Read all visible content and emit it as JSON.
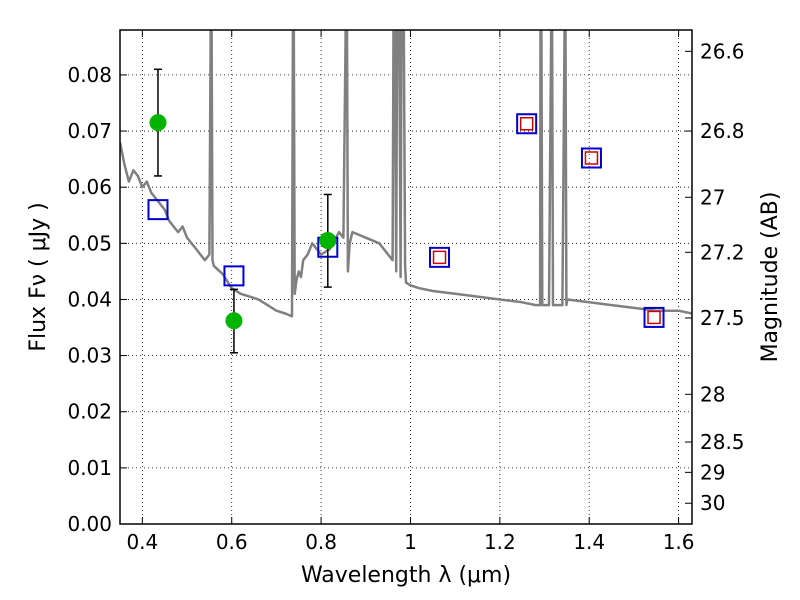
{
  "chart_data": {
    "type": "scatter",
    "title": "",
    "xlabel": "Wavelength  λ (μm)",
    "ylabel": "Flux  Fν  ( μJy )",
    "y2label": "Magnitude (AB)",
    "xlim": [
      0.35,
      1.63
    ],
    "ylim": [
      0.0,
      0.088
    ],
    "grid": true,
    "x_ticks": [
      0.4,
      0.6,
      0.8,
      1.0,
      1.2,
      1.4,
      1.6
    ],
    "x_tick_labels": [
      "0.4",
      "0.6",
      "0.8",
      "1",
      "1.2",
      "1.4",
      "1.6"
    ],
    "y_ticks": [
      0.0,
      0.01,
      0.02,
      0.03,
      0.04,
      0.05,
      0.06,
      0.07,
      0.08
    ],
    "y_tick_labels": [
      "0.00",
      "0.01",
      "0.02",
      "0.03",
      "0.04",
      "0.05",
      "0.06",
      "0.07",
      "0.08"
    ],
    "y2_ticks": [
      {
        "label": "26.6",
        "flux": 0.0842
      },
      {
        "label": "26.8",
        "flux": 0.07
      },
      {
        "label": "27",
        "flux": 0.0582
      },
      {
        "label": "27.2",
        "flux": 0.0484
      },
      {
        "label": "27.5",
        "flux": 0.0367
      },
      {
        "label": "28",
        "flux": 0.0231
      },
      {
        "label": "28.5",
        "flux": 0.0146
      },
      {
        "label": "29",
        "flux": 0.0092
      },
      {
        "label": "30",
        "flux": 0.0037
      }
    ],
    "series": [
      {
        "type": "line",
        "color": "#808080",
        "x": [
          0.35,
          0.36,
          0.37,
          0.38,
          0.39,
          0.4,
          0.41,
          0.42,
          0.43,
          0.44,
          0.45,
          0.46,
          0.47,
          0.48,
          0.49,
          0.5,
          0.52,
          0.54,
          0.55,
          0.553,
          0.555,
          0.557,
          0.56,
          0.58,
          0.6,
          0.62,
          0.64,
          0.66,
          0.68,
          0.7,
          0.72,
          0.735,
          0.737,
          0.739,
          0.741,
          0.745,
          0.75,
          0.755,
          0.76,
          0.77,
          0.78,
          0.79,
          0.8,
          0.82,
          0.84,
          0.85,
          0.855,
          0.858,
          0.86,
          0.864,
          0.87,
          0.9,
          0.93,
          0.95,
          0.96,
          0.962,
          0.965,
          0.968,
          0.97,
          0.975,
          0.978,
          0.98,
          0.985,
          0.988,
          0.99,
          1.0,
          1.02,
          1.05,
          1.1,
          1.15,
          1.2,
          1.25,
          1.28,
          1.29,
          1.291,
          1.293,
          1.295,
          1.31,
          1.315,
          1.317,
          1.319,
          1.321,
          1.34,
          1.345,
          1.347,
          1.349,
          1.351,
          1.4,
          1.45,
          1.5,
          1.55,
          1.6,
          1.63
        ],
        "y": [
          0.068,
          0.064,
          0.061,
          0.063,
          0.062,
          0.06,
          0.061,
          0.059,
          0.058,
          0.057,
          0.056,
          0.054,
          0.053,
          0.052,
          0.053,
          0.051,
          0.049,
          0.047,
          0.048,
          0.0885,
          0.0885,
          0.047,
          0.046,
          0.0445,
          0.042,
          0.041,
          0.0405,
          0.04,
          0.039,
          0.038,
          0.0375,
          0.037,
          0.0885,
          0.0885,
          0.041,
          0.0435,
          0.045,
          0.044,
          0.047,
          0.048,
          0.05,
          0.049,
          0.048,
          0.049,
          0.052,
          0.051,
          0.0885,
          0.0885,
          0.045,
          0.05,
          0.052,
          0.051,
          0.05,
          0.048,
          0.047,
          0.0885,
          0.0885,
          0.045,
          0.0885,
          0.0885,
          0.044,
          0.0885,
          0.0885,
          0.046,
          0.043,
          0.0425,
          0.042,
          0.0415,
          0.041,
          0.0405,
          0.04,
          0.0395,
          0.039,
          0.039,
          0.0885,
          0.0885,
          0.039,
          0.039,
          0.0885,
          0.0885,
          0.039,
          0.039,
          0.039,
          0.0885,
          0.0885,
          0.039,
          0.04,
          0.0395,
          0.039,
          0.0385,
          0.038,
          0.038,
          0.0375
        ]
      },
      {
        "type": "scatter",
        "marker": "square",
        "color": "#0000cc",
        "fill": "none",
        "x": [
          0.435,
          0.605,
          0.815,
          1.065,
          1.26,
          1.405,
          1.545
        ],
        "y": [
          0.056,
          0.0442,
          0.0493,
          0.0475,
          0.0713,
          0.0652,
          0.0368
        ]
      },
      {
        "type": "scatter",
        "marker": "square",
        "color": "#cc0000",
        "fill": "none",
        "x": [
          1.065,
          1.26,
          1.405,
          1.545
        ],
        "y": [
          0.0475,
          0.0713,
          0.0652,
          0.0368
        ]
      },
      {
        "type": "scatter",
        "marker": "circle",
        "color": "#00b400",
        "x": [
          0.435,
          0.605,
          0.815
        ],
        "y": [
          0.0715,
          0.0362,
          0.0505
        ],
        "err_low": [
          0.062,
          0.0305,
          0.0422
        ],
        "err_high": [
          0.081,
          0.0418,
          0.0587
        ]
      }
    ]
  }
}
